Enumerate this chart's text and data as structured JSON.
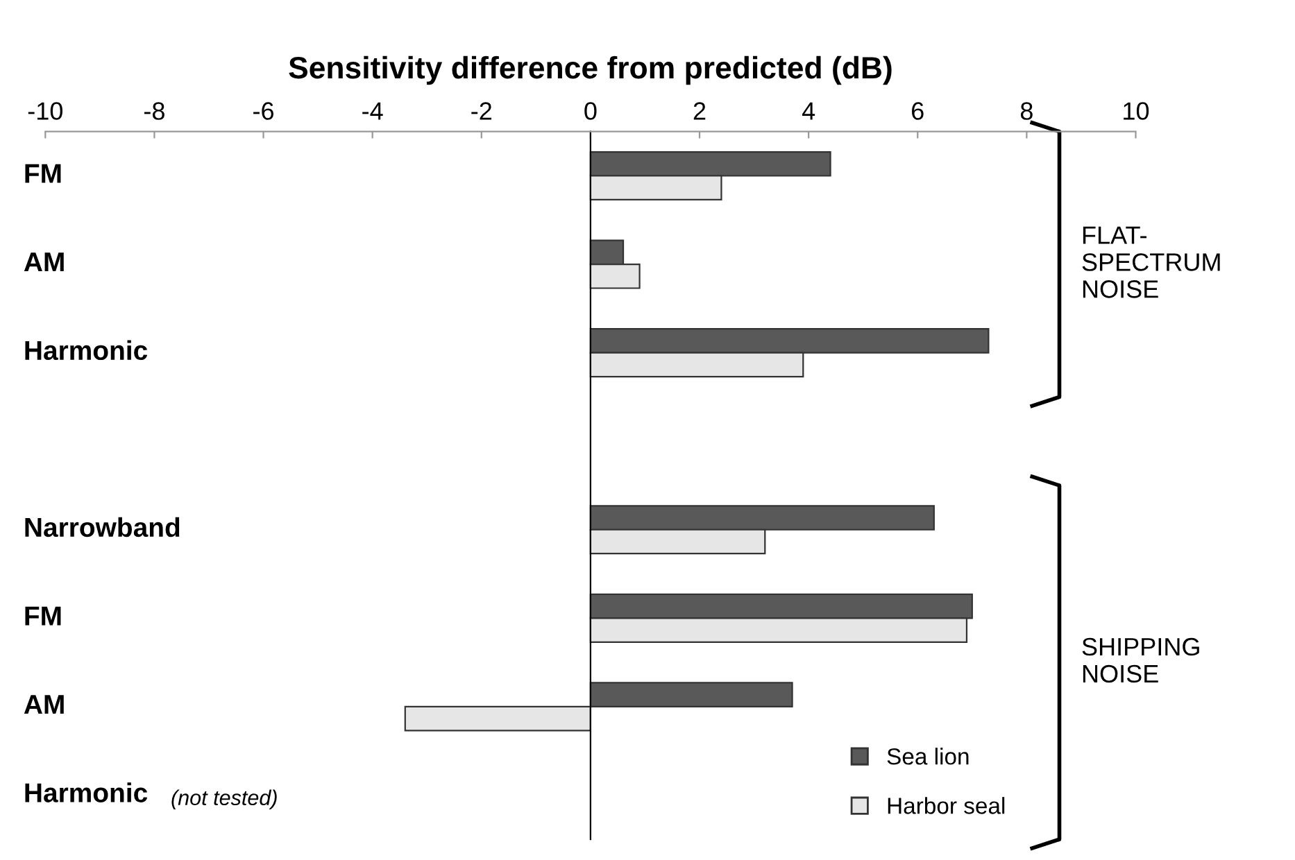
{
  "chart_data": {
    "type": "bar",
    "orientation": "horizontal",
    "xlabel": "Sensitivity difference from predicted (dB)",
    "categories": [
      "FM",
      "AM",
      "Harmonic",
      null,
      "Narrowband",
      "FM",
      "AM",
      "Harmonic"
    ],
    "series": [
      {
        "name": "Sea lion",
        "color": "#595959",
        "values": [
          4.4,
          0.6,
          7.3,
          null,
          6.3,
          7.0,
          3.7,
          null
        ]
      },
      {
        "name": "Harbor seal",
        "color": "#e6e6e6",
        "values": [
          2.4,
          0.9,
          3.9,
          null,
          3.2,
          6.9,
          -3.4,
          null
        ]
      }
    ],
    "xlim": [
      -10,
      10
    ],
    "xticks": [
      -10,
      -8,
      -6,
      -4,
      -2,
      0,
      2,
      4,
      6,
      8,
      10
    ],
    "legend": "bottom right",
    "annotations": [
      "FLAT-\nSPECTRUM\nNOISE",
      "SHIPPING\nNOISE",
      "(not tested)"
    ]
  }
}
